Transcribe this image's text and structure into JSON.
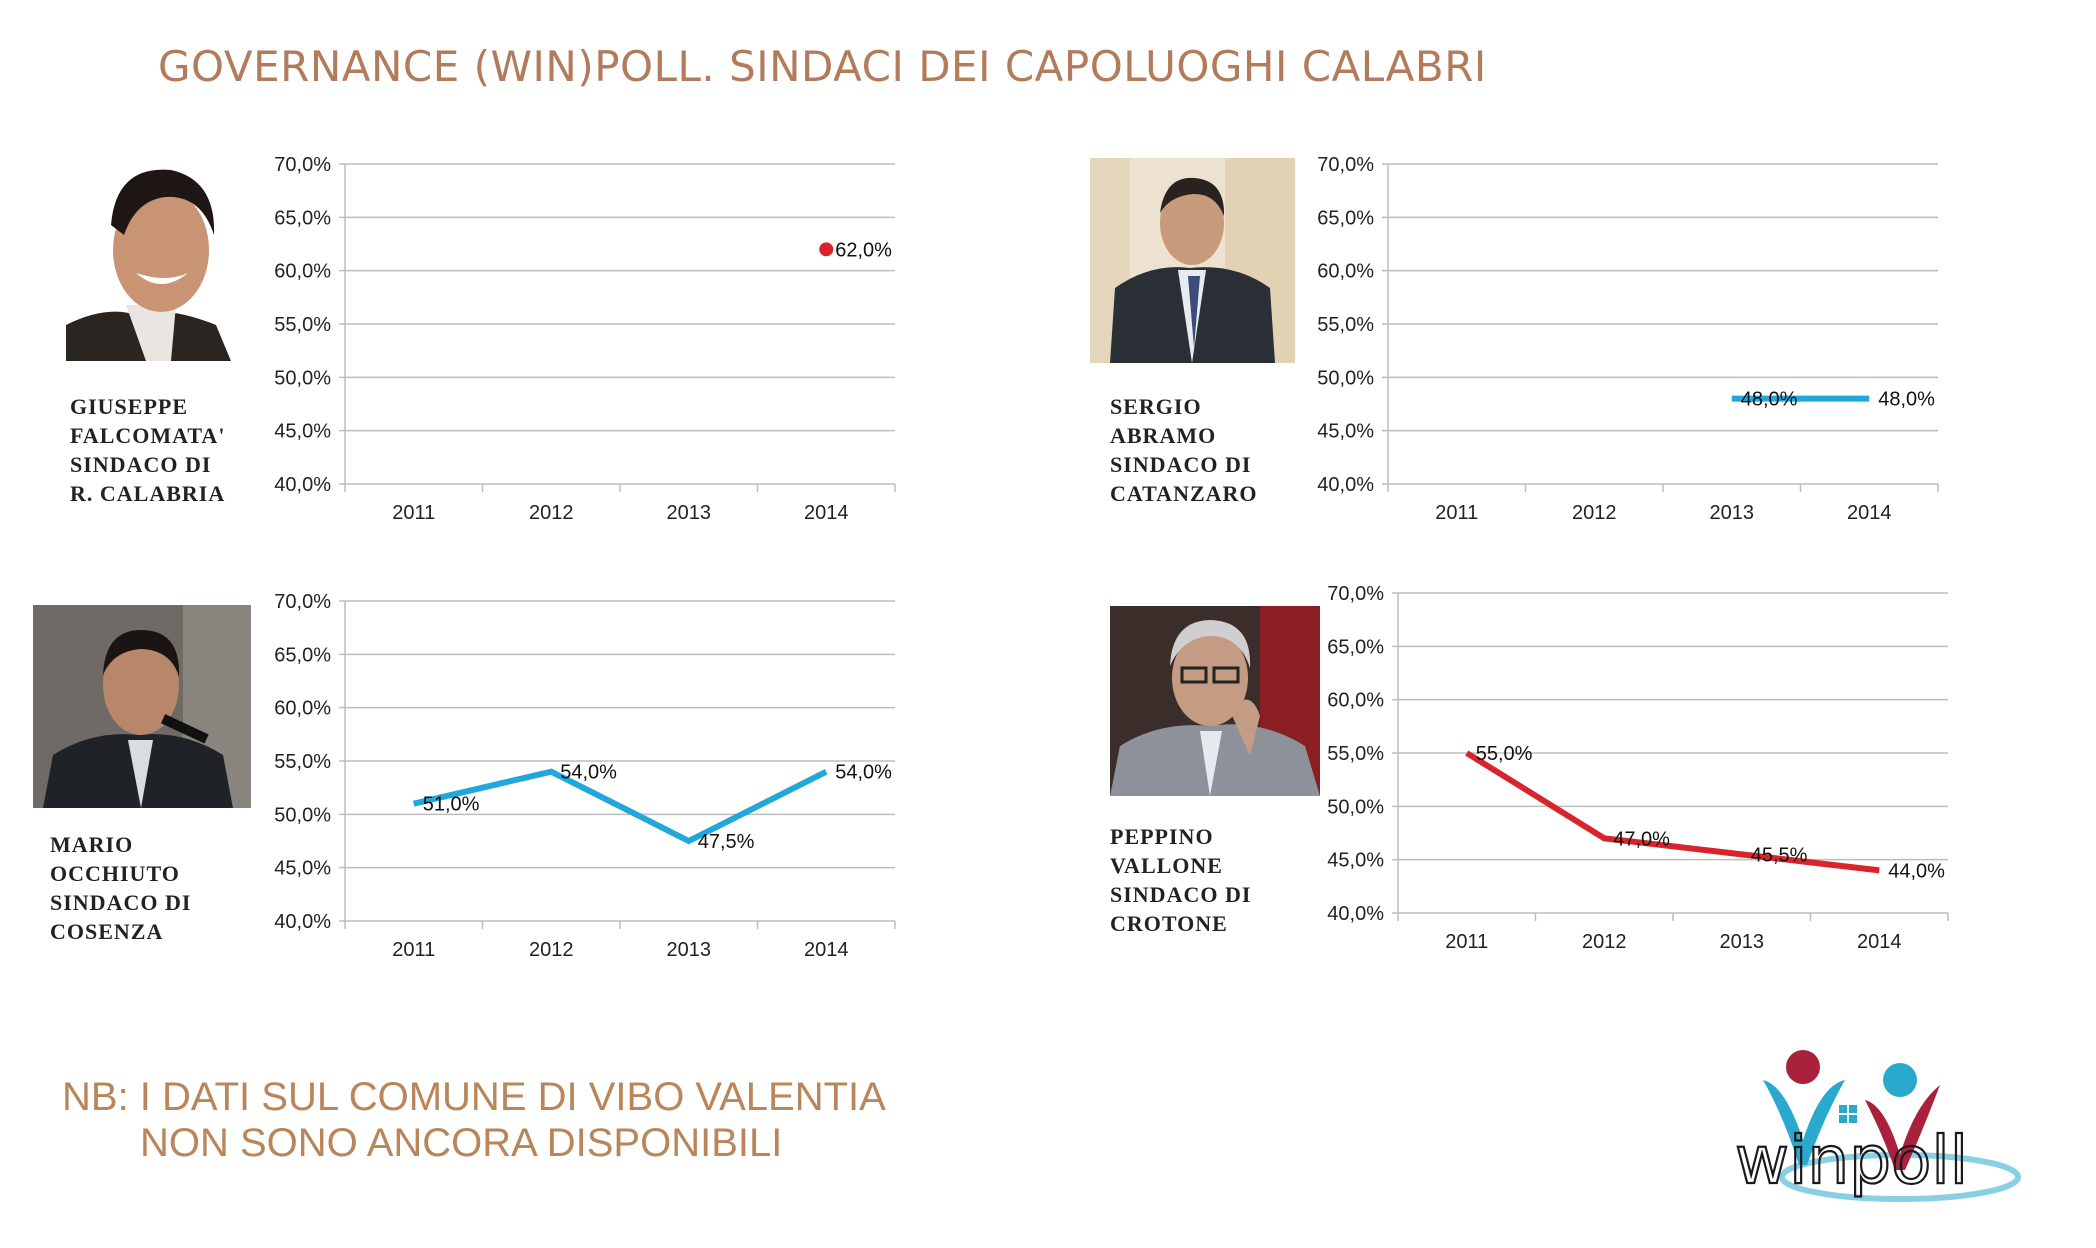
{
  "title": "GOVERNANCE (WIN)POLL. SINDACI DEI CAPOLUOGHI CALABRI",
  "panels": [
    {
      "name_lines": [
        "GIUSEPPE",
        "FALCOMATA'",
        "SINDACO DI",
        "R. CALABRIA"
      ]
    },
    {
      "name_lines": [
        "SERGIO",
        "ABRAMO",
        "SINDACO DI",
        "CATANZARO"
      ]
    },
    {
      "name_lines": [
        "MARIO",
        "OCCHIUTO",
        "SINDACO DI",
        "COSENZA"
      ]
    },
    {
      "name_lines": [
        "PEPPINO",
        "VALLONE",
        "SINDACO DI",
        "CROTONE"
      ]
    }
  ],
  "chart_data": [
    {
      "type": "line",
      "categories": [
        "2011",
        "2012",
        "2013",
        "2014"
      ],
      "series": [
        {
          "values": [
            null,
            null,
            null,
            62.0
          ],
          "labels": [
            "",
            "",
            "",
            "62,0%"
          ]
        }
      ],
      "ylim": [
        40,
        70
      ],
      "yticks": [
        "40,0%",
        "45,0%",
        "50,0%",
        "55,0%",
        "60,0%",
        "65,0%",
        "70,0%"
      ],
      "color": "#d8242d",
      "grid": true
    },
    {
      "type": "line",
      "categories": [
        "2011",
        "2012",
        "2013",
        "2014"
      ],
      "series": [
        {
          "values": [
            null,
            null,
            48.0,
            48.0
          ],
          "labels": [
            "",
            "",
            "48,0%",
            "48,0%"
          ]
        }
      ],
      "ylim": [
        40,
        70
      ],
      "yticks": [
        "40,0%",
        "45,0%",
        "50,0%",
        "55,0%",
        "60,0%",
        "65,0%",
        "70,0%"
      ],
      "color": "#22a7dc",
      "grid": true
    },
    {
      "type": "line",
      "categories": [
        "2011",
        "2012",
        "2013",
        "2014"
      ],
      "series": [
        {
          "values": [
            51.0,
            54.0,
            47.5,
            54.0
          ],
          "labels": [
            "51,0%",
            "54,0%",
            "47,5%",
            "54,0%"
          ]
        }
      ],
      "ylim": [
        40,
        70
      ],
      "yticks": [
        "40,0%",
        "45,0%",
        "50,0%",
        "55,0%",
        "60,0%",
        "65,0%",
        "70,0%"
      ],
      "color": "#22a7dc",
      "grid": true
    },
    {
      "type": "line",
      "categories": [
        "2011",
        "2012",
        "2013",
        "2014"
      ],
      "series": [
        {
          "values": [
            55.0,
            47.0,
            45.5,
            44.0
          ],
          "labels": [
            "55,0%",
            "47,0%",
            "45,5%",
            "44,0%"
          ]
        }
      ],
      "ylim": [
        40,
        70
      ],
      "yticks": [
        "40,0%",
        "45,0%",
        "50,0%",
        "55,0%",
        "60,0%",
        "65,0%",
        "70,0%"
      ],
      "color": "#d8242d",
      "grid": true
    }
  ],
  "note": {
    "line1": "NB: I DATI SUL COMUNE DI VIBO VALENTIA",
    "line2": "NON SONO ANCORA DISPONIBILI"
  },
  "logo": {
    "text": "winpoll",
    "colors": {
      "red": "#a9213a",
      "blue": "#2aa9cf"
    }
  }
}
